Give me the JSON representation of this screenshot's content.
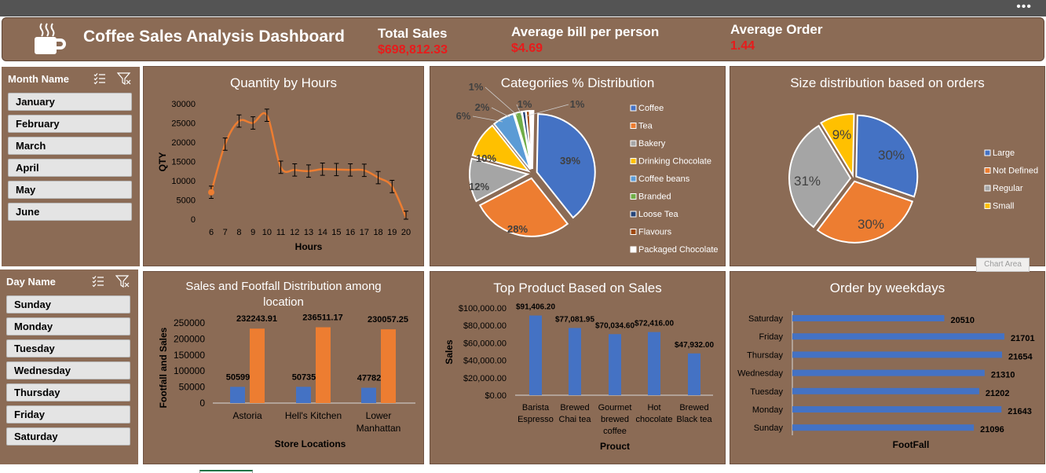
{
  "header": {
    "title": "Coffee Sales Analysis Dashboard",
    "kpis": [
      {
        "label": "Total Sales",
        "value": "$698,812.33"
      },
      {
        "label": "Average bill per person",
        "value": "$4.69"
      },
      {
        "label": "Average Order",
        "value": "1.44"
      }
    ]
  },
  "toolbar": {
    "more_label": "•••"
  },
  "slicers": {
    "month": {
      "title": "Month Name",
      "items": [
        "January",
        "February",
        "March",
        "April",
        "May",
        "June"
      ]
    },
    "day": {
      "title": "Day Name",
      "items": [
        "Sunday",
        "Monday",
        "Tuesday",
        "Wednesday",
        "Thursday",
        "Friday",
        "Saturday"
      ]
    }
  },
  "tooltip": {
    "chart_area": "Chart Area"
  },
  "colors": {
    "panel": "#8b6b55",
    "orange": "#ed7d31",
    "blue": "#4472c4",
    "gray": "#a5a5a5",
    "yellow": "#ffc000",
    "lightblue": "#5b9bd5",
    "green": "#70ad47",
    "navy": "#264478",
    "brown": "#9e480e",
    "kpi_red": "#e81b1b"
  },
  "chart_data": [
    {
      "type": "line",
      "title": "Quantity by Hours",
      "xlabel": "Hours",
      "ylabel": "QTY",
      "x": [
        6,
        7,
        8,
        9,
        10,
        11,
        12,
        13,
        14,
        15,
        16,
        17,
        18,
        19,
        20
      ],
      "values": [
        7000,
        19500,
        25500,
        25000,
        27000,
        13500,
        12800,
        12500,
        13000,
        12900,
        12800,
        12700,
        10800,
        8500,
        500
      ],
      "error": 1600,
      "yticks": [
        0,
        5000,
        10000,
        15000,
        20000,
        25000,
        30000
      ],
      "ylim": [
        0,
        30000
      ]
    },
    {
      "type": "pie",
      "title": "Categoriies % Distribution",
      "legend": "right",
      "slices": [
        {
          "name": "Coffee",
          "value": 39,
          "label": "39%"
        },
        {
          "name": "Tea",
          "value": 28,
          "label": "28%"
        },
        {
          "name": "Bakery",
          "value": 12,
          "label": "12%"
        },
        {
          "name": "Drinking Chocolate",
          "value": 10,
          "label": "10%"
        },
        {
          "name": "Coffee beans",
          "value": 6,
          "label": "6%"
        },
        {
          "name": "Branded",
          "value": 2,
          "label": "2%"
        },
        {
          "name": "Loose Tea",
          "value": 1,
          "label": "1%"
        },
        {
          "name": "Flavours",
          "value": 1,
          "label": "1%"
        },
        {
          "name": "Packaged Chocolate",
          "value": 1,
          "label": "1%"
        }
      ]
    },
    {
      "type": "pie",
      "title": "Size  distribution based on orders",
      "legend": "right",
      "slices": [
        {
          "name": "Large",
          "value": 30,
          "label": "30%"
        },
        {
          "name": "Not Defined",
          "value": 30,
          "label": "30%"
        },
        {
          "name": "Regular",
          "value": 31,
          "label": "31%"
        },
        {
          "name": "Small",
          "value": 9,
          "label": "9%"
        }
      ]
    },
    {
      "type": "bar",
      "title": "Sales and Footfall Distribution among location",
      "xlabel": "Store Locations",
      "ylabel": "Footfall and Sales",
      "categories": [
        "Astoria",
        "Hell's Kitchen",
        "Lower Manhattan"
      ],
      "series": [
        {
          "values": [
            50599,
            50735,
            47782
          ],
          "labels": [
            "50599",
            "50735",
            "47782"
          ]
        },
        {
          "values": [
            232243.91,
            236511.17,
            230057.25
          ],
          "labels": [
            "232243.91",
            "236511.17",
            "230057.25"
          ]
        }
      ],
      "yticks": [
        0,
        50000,
        100000,
        150000,
        200000,
        250000
      ],
      "ylim": [
        0,
        250000
      ]
    },
    {
      "type": "bar",
      "title": "Top Product Based on Sales",
      "xlabel": "Prouct",
      "ylabel": "Sales",
      "categories": [
        "Barista Espresso",
        "Brewed Chai tea",
        "Gourmet brewed coffee",
        "Hot chocolate",
        "Brewed Black tea"
      ],
      "values": [
        91406.2,
        77081.95,
        70034.6,
        72416.0,
        47932.0
      ],
      "labels": [
        "$91,406.20",
        "$77,081.95",
        "$70,034.60",
        "$72,416.00",
        "$47,932.00"
      ],
      "yticks": [
        "$0.00",
        "$20,000.00",
        "$40,000.00",
        "$60,000.00",
        "$80,000.00",
        "$100,000.00"
      ],
      "ylim": [
        0,
        100000
      ]
    },
    {
      "type": "bar",
      "orientation": "horizontal",
      "title": "Order by weekdays",
      "xlabel": "FootFall",
      "categories": [
        "Saturday",
        "Friday",
        "Thursday",
        "Wednesday",
        "Tuesday",
        "Monday",
        "Sunday"
      ],
      "values": [
        20510,
        21701,
        21654,
        21310,
        21202,
        21643,
        21096
      ]
    }
  ]
}
